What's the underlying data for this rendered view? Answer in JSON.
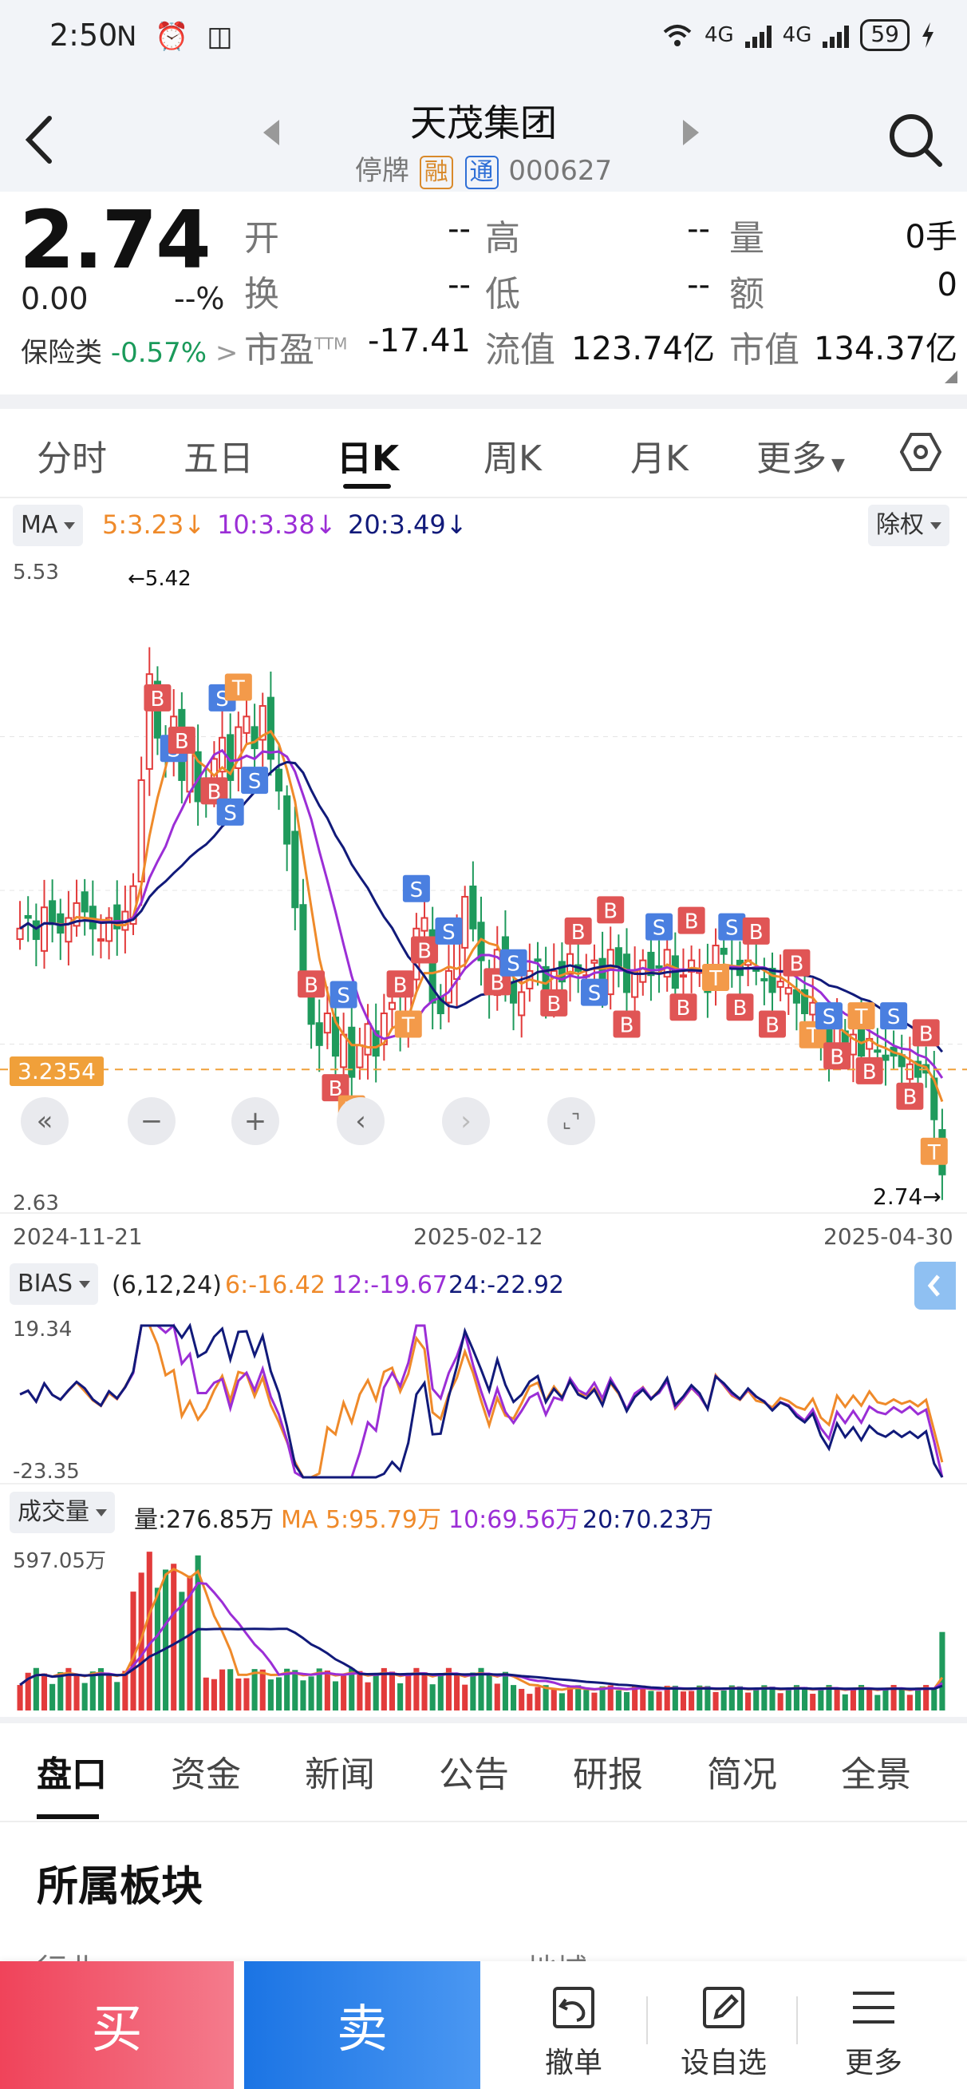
{
  "status_bar": {
    "time": "2:50",
    "left_icons": "N ⏰ ◫",
    "net1": "4G",
    "net2": "4G",
    "battery": "59"
  },
  "header": {
    "title": "天茂集团",
    "suspension": "停牌",
    "tag_margin": "融",
    "tag_connect": "通",
    "code": "000627"
  },
  "quote": {
    "price": "2.74",
    "change": "0.00",
    "change_pct": "--%",
    "sector_name": "保险类",
    "sector_change": "-0.57%",
    "sector_arrow": ">",
    "open_label": "开",
    "open_val": "--",
    "high_label": "高",
    "high_val": "--",
    "vol_label": "量",
    "vol_val": "0手",
    "turnover_label": "换",
    "turnover_val": "--",
    "low_label": "低",
    "low_val": "--",
    "amount_label": "额",
    "amount_val": "0",
    "pe_label": "市盈",
    "pe_sup": "TTM",
    "pe_val": "-17.41",
    "float_label": "流值",
    "float_val": "123.74亿",
    "mcap_label": "市值",
    "mcap_val": "134.37亿"
  },
  "period_tabs": [
    "分时",
    "五日",
    "日K",
    "周K",
    "月K",
    "更多"
  ],
  "period_active_index": 2,
  "ma_legend": {
    "dropdown": "MA",
    "ma5": "5:3.23↓",
    "ma10": "10:3.38↓",
    "ma20": "20:3.49↓",
    "adjust": "除权"
  },
  "kchart_labels": {
    "y_top": "5.53",
    "y_bottom": "2.63",
    "max_marker": "←5.42",
    "min_marker": "2.74→",
    "price_line": "3.2354",
    "date_start": "2024-11-21",
    "date_mid": "2025-02-12",
    "date_end": "2025-04-30"
  },
  "chart_controls": [
    "«",
    "−",
    "+",
    "‹",
    "›",
    "⌞⌝"
  ],
  "bias": {
    "dropdown": "BIAS",
    "params": "(6,12,24)",
    "v6": "6:-16.42",
    "v12": "12:-19.67",
    "v24": "24:-22.92",
    "y_top": "19.34",
    "y_bottom": "-23.35"
  },
  "volume": {
    "dropdown": "成交量",
    "vol": "量:276.85万",
    "ma5": "MA 5:95.79万",
    "ma10": "10:69.56万",
    "ma20": "20:70.23万",
    "y_top": "597.05万"
  },
  "bottom_tabs": [
    "盘口",
    "资金",
    "新闻",
    "公告",
    "研报",
    "简况",
    "全景"
  ],
  "bottom_active_index": 0,
  "section": {
    "title": "所属板块",
    "peek_left": "行业",
    "peek_right": "地域"
  },
  "actions": {
    "buy": "买",
    "sell": "卖",
    "cancel": "撤单",
    "watch": "设自选",
    "more": "更多"
  },
  "colors": {
    "up": "#e23b3b",
    "down": "#1f9a5c",
    "ma5": "#ef8a2a",
    "ma10": "#9b2ed6",
    "ma20": "#111a7a",
    "buy": "#f0435a",
    "sell": "#1b74e4"
  },
  "chart_data": [
    {
      "type": "candlestick",
      "title": "日K",
      "x_range": [
        "2024-11-21",
        "2025-04-30"
      ],
      "ylim": [
        2.63,
        5.53
      ],
      "max_price": 5.42,
      "last_price": 2.74,
      "reference_line": 3.2354,
      "closes": [
        3.9,
        3.95,
        3.85,
        4.0,
        3.92,
        3.88,
        3.95,
        4.02,
        3.98,
        3.9,
        3.85,
        3.95,
        3.9,
        3.98,
        4.1,
        4.6,
        5.1,
        4.8,
        4.7,
        4.9,
        4.6,
        4.75,
        4.5,
        4.55,
        4.7,
        4.8,
        4.6,
        4.85,
        4.9,
        4.75,
        4.95,
        4.7,
        4.55,
        4.3,
        4.0,
        3.7,
        3.45,
        3.35,
        3.5,
        3.3,
        3.4,
        3.2,
        3.35,
        3.45,
        3.3,
        3.5,
        3.55,
        3.45,
        3.6,
        3.9,
        3.95,
        3.55,
        3.5,
        3.7,
        3.85,
        4.05,
        3.9,
        3.75,
        3.6,
        3.8,
        3.65,
        3.55,
        3.6,
        3.7,
        3.75,
        3.6,
        3.7,
        3.65,
        3.78,
        3.7,
        3.68,
        3.75,
        3.65,
        3.8,
        3.72,
        3.6,
        3.7,
        3.75,
        3.68,
        3.72,
        3.8,
        3.62,
        3.68,
        3.75,
        3.7,
        3.6,
        3.82,
        3.78,
        3.72,
        3.68,
        3.75,
        3.7,
        3.66,
        3.6,
        3.65,
        3.62,
        3.55,
        3.5,
        3.55,
        3.4,
        3.3,
        3.45,
        3.35,
        3.4,
        3.3,
        3.38,
        3.32,
        3.28,
        3.3,
        3.25,
        3.26,
        3.2,
        3.22,
        3.0,
        2.74
      ],
      "ma5_last": 3.23,
      "ma10_last": 3.38,
      "ma20_last": 3.49
    },
    {
      "type": "line",
      "title": "BIAS",
      "ylim": [
        -23.35,
        19.34
      ],
      "series": [
        {
          "name": "6",
          "last": -16.42
        },
        {
          "name": "12",
          "last": -19.67
        },
        {
          "name": "24",
          "last": -22.92
        }
      ]
    },
    {
      "type": "bar",
      "title": "成交量",
      "ylim": [
        0,
        597.05
      ],
      "last_volume": 276.85,
      "ma5_last": 95.79,
      "ma10_last": 69.56,
      "ma20_last": 70.23
    }
  ]
}
